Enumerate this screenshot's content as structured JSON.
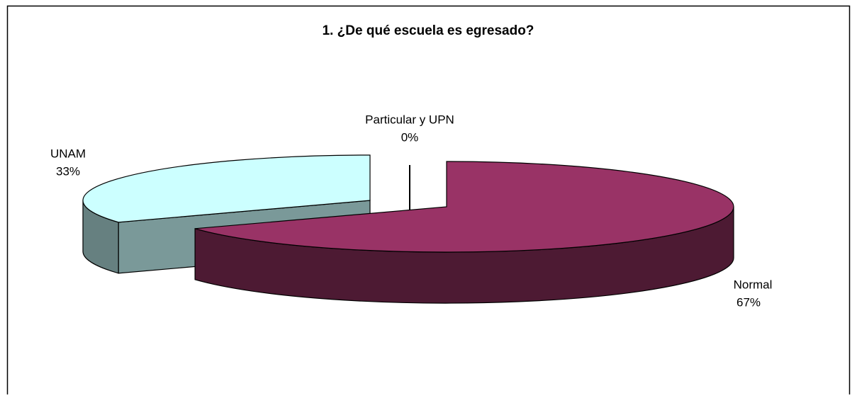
{
  "chart_data": {
    "type": "pie3d",
    "title": "1. ¿De qué escuela es egresado?",
    "categories": [
      "Normal",
      "UNAM",
      "Particular y UPN"
    ],
    "values": [
      67,
      33,
      0
    ],
    "value_labels": [
      "67%",
      "33%",
      "0%"
    ],
    "colors": [
      "#993366",
      "#ccffff",
      "#000000"
    ]
  }
}
